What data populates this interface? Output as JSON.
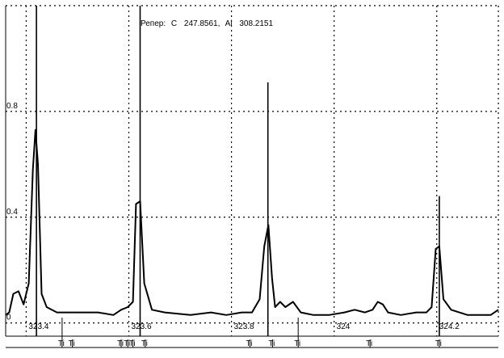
{
  "chart_data": {
    "type": "line",
    "header": {
      "prefix": "Репер:",
      "element_1": "C",
      "value_1": "247.8561,",
      "element_2": "Al",
      "value_2": "308.2151"
    },
    "xlim": [
      323.36,
      324.32
    ],
    "ylim": [
      -0.05,
      1.2
    ],
    "x_ticks": [
      {
        "value": 323.4,
        "label": "323.4"
      },
      {
        "value": 323.6,
        "label": "323.6"
      },
      {
        "value": 323.8,
        "label": "323.8"
      },
      {
        "value": 324.0,
        "label": "324"
      },
      {
        "value": 324.2,
        "label": "324.2"
      }
    ],
    "y_ticks": [
      {
        "value": 0,
        "label": "0"
      },
      {
        "value": 0.4,
        "label": "0.4"
      },
      {
        "value": 0.8,
        "label": "0.8"
      }
    ],
    "grid": true,
    "series": [
      {
        "values": [
          [
            323.36,
            0.03
          ],
          [
            323.367,
            0.04
          ],
          [
            323.375,
            0.11
          ],
          [
            323.385,
            0.12
          ],
          [
            323.395,
            0.07
          ],
          [
            323.405,
            0.15
          ],
          [
            323.413,
            0.58
          ],
          [
            323.418,
            0.73
          ],
          [
            323.423,
            0.6
          ],
          [
            323.43,
            0.11
          ],
          [
            323.44,
            0.06
          ],
          [
            323.46,
            0.04
          ],
          [
            323.5,
            0.04
          ],
          [
            323.54,
            0.04
          ],
          [
            323.57,
            0.03
          ],
          [
            323.585,
            0.05
          ],
          [
            323.598,
            0.06
          ],
          [
            323.608,
            0.08
          ],
          [
            323.614,
            0.45
          ],
          [
            323.622,
            0.46
          ],
          [
            323.63,
            0.15
          ],
          [
            323.645,
            0.05
          ],
          [
            323.67,
            0.04
          ],
          [
            323.72,
            0.03
          ],
          [
            323.76,
            0.04
          ],
          [
            323.79,
            0.03
          ],
          [
            323.82,
            0.04
          ],
          [
            323.84,
            0.04
          ],
          [
            323.855,
            0.09
          ],
          [
            323.864,
            0.29
          ],
          [
            323.872,
            0.37
          ],
          [
            323.879,
            0.17
          ],
          [
            323.885,
            0.06
          ],
          [
            323.895,
            0.08
          ],
          [
            323.905,
            0.06
          ],
          [
            323.92,
            0.08
          ],
          [
            323.935,
            0.04
          ],
          [
            323.96,
            0.03
          ],
          [
            323.99,
            0.03
          ],
          [
            324.02,
            0.04
          ],
          [
            324.04,
            0.05
          ],
          [
            324.06,
            0.04
          ],
          [
            324.075,
            0.05
          ],
          [
            324.085,
            0.08
          ],
          [
            324.095,
            0.07
          ],
          [
            324.105,
            0.04
          ],
          [
            324.13,
            0.03
          ],
          [
            324.16,
            0.04
          ],
          [
            324.18,
            0.04
          ],
          [
            324.19,
            0.06
          ],
          [
            324.198,
            0.28
          ],
          [
            324.205,
            0.29
          ],
          [
            324.213,
            0.09
          ],
          [
            324.228,
            0.05
          ],
          [
            324.26,
            0.03
          ],
          [
            324.29,
            0.03
          ],
          [
            324.305,
            0.03
          ],
          [
            324.32,
            0.05
          ]
        ]
      }
    ],
    "marker_lines": [
      {
        "x": 323.42,
        "top": 1.2
      },
      {
        "x": 323.622,
        "top": 1.2
      },
      {
        "x": 323.871,
        "top": 0.91
      },
      {
        "x": 324.205,
        "top": 0.48
      }
    ],
    "bottom_ticks": [
      {
        "x": 323.47,
        "label": "Ti",
        "long": true
      },
      {
        "x": 323.49,
        "label": "Ti",
        "long": false
      },
      {
        "x": 323.585,
        "label": "Ti",
        "long": false
      },
      {
        "x": 323.598,
        "label": "Ti",
        "long": false
      },
      {
        "x": 323.608,
        "label": "Ti",
        "long": false
      },
      {
        "x": 323.632,
        "label": "Ti",
        "long": false
      },
      {
        "x": 323.836,
        "label": "Ti",
        "long": false
      },
      {
        "x": 323.88,
        "label": "Ti",
        "long": false
      },
      {
        "x": 323.93,
        "label": "Ti",
        "long": true
      },
      {
        "x": 324.07,
        "label": "Ti",
        "long": false
      },
      {
        "x": 324.205,
        "label": "Ti",
        "long": false
      }
    ]
  }
}
